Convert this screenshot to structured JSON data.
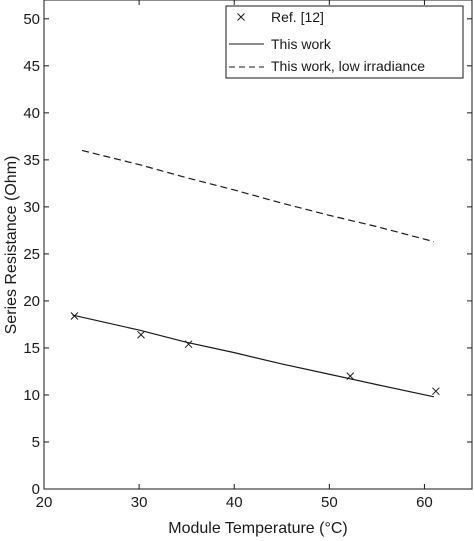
{
  "chart_data": {
    "type": "line",
    "xlabel": "Module Temperature (°C)",
    "ylabel": "Series Resistance (Ohm)",
    "xlim": [
      20,
      65
    ],
    "ylim": [
      0,
      52
    ],
    "xticks": [
      20,
      30,
      40,
      50,
      60
    ],
    "yticks": [
      0,
      5,
      10,
      15,
      20,
      25,
      30,
      35,
      40,
      45,
      50
    ],
    "grid": false,
    "legend_position": "top-right",
    "series": [
      {
        "name": "Ref. [12]",
        "style": "markers-x",
        "x": [
          23.2,
          30.2,
          35.2,
          52.2,
          61.2
        ],
        "y": [
          18.4,
          16.4,
          15.4,
          12.0,
          10.4
        ]
      },
      {
        "name": "This work",
        "style": "solid",
        "x": [
          23.0,
          30.0,
          35.0,
          40.0,
          45.0,
          50.0,
          55.0,
          61.0
        ],
        "y": [
          18.5,
          16.9,
          15.6,
          14.5,
          13.3,
          12.2,
          11.1,
          9.8
        ]
      },
      {
        "name": "This work, low irradiance",
        "style": "dashed",
        "x": [
          24.0,
          30.0,
          35.0,
          40.0,
          45.0,
          50.0,
          55.0,
          61.0
        ],
        "y": [
          36.0,
          34.5,
          33.1,
          31.8,
          30.4,
          29.1,
          27.9,
          26.3
        ]
      }
    ],
    "colors": {
      "line": "#1a1a1a",
      "axis": "#1a1a1a"
    }
  }
}
